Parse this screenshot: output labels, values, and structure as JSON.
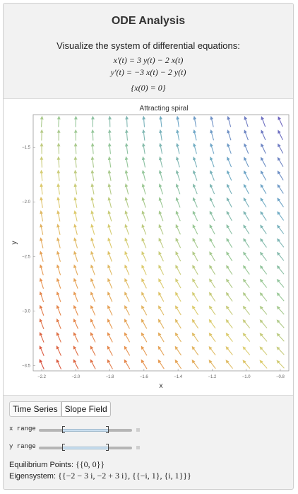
{
  "panel": {
    "title": "ODE Analysis",
    "subtitle": "Visualize the system of differential equations:",
    "equation1": "x′(t) = 3 y(t) − 2 x(t)",
    "equation2": "y′(t) = −3 x(t) − 2 y(t)",
    "initial_condition": "{x(0) = 0}"
  },
  "chart_data": {
    "type": "vector-field",
    "title": "Attracting spiral",
    "xlabel": "x",
    "ylabel": "y",
    "xlim": [
      -2.25,
      -0.75
    ],
    "ylim": [
      -3.55,
      -1.2
    ],
    "x_ticks": [
      -2.2,
      -2.0,
      -1.8,
      -1.6,
      -1.4,
      -1.2,
      -1.0,
      -0.8
    ],
    "x_tick_labels": [
      "−2.2",
      "−2.0",
      "−1.8",
      "−1.6",
      "−1.4",
      "−1.2",
      "−1.0",
      "−0.8"
    ],
    "y_ticks": [
      -1.5,
      -2.0,
      -2.5,
      -3.0,
      -3.5
    ],
    "y_tick_labels": [
      "−1.5",
      "−2.0",
      "−2.5",
      "−3.0",
      "−3.5"
    ],
    "field": {
      "dx": "3*y - 2*x",
      "dy": "-3*x - 2*y"
    },
    "grid": false
  },
  "controls": {
    "tabs": [
      {
        "label": "Time Series",
        "active": false
      },
      {
        "label": "Slope Field",
        "active": true
      }
    ],
    "x_range_label": "x range",
    "y_range_label": "y range",
    "equilibrium_label": "Equilibrium Points:",
    "equilibrium_value": "{{0, 0}}",
    "eigensystem_label": "Eigensystem:",
    "eigensystem_value": "{{−2 − 3 i, −2 + 3 i}, {{−i, 1}, {i, 1}}}"
  }
}
